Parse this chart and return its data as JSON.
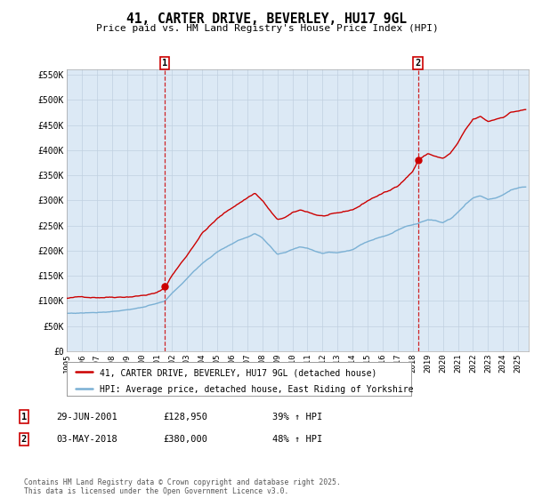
{
  "title": "41, CARTER DRIVE, BEVERLEY, HU17 9GL",
  "subtitle": "Price paid vs. HM Land Registry's House Price Index (HPI)",
  "legend_property": "41, CARTER DRIVE, BEVERLEY, HU17 9GL (detached house)",
  "legend_hpi": "HPI: Average price, detached house, East Riding of Yorkshire",
  "property_color": "#cc0000",
  "hpi_color": "#7ab0d4",
  "chart_bg": "#dce9f5",
  "marker1_date": "29-JUN-2001",
  "marker1_price": 128950,
  "marker1_label": "39% ↑ HPI",
  "marker2_date": "03-MAY-2018",
  "marker2_price": 380000,
  "marker2_label": "48% ↑ HPI",
  "ylim": [
    0,
    560000
  ],
  "yticks": [
    0,
    50000,
    100000,
    150000,
    200000,
    250000,
    300000,
    350000,
    400000,
    450000,
    500000,
    550000
  ],
  "footer": "Contains HM Land Registry data © Crown copyright and database right 2025.\nThis data is licensed under the Open Government Licence v3.0.",
  "background_color": "#ffffff",
  "grid_color": "#c0d0e0"
}
